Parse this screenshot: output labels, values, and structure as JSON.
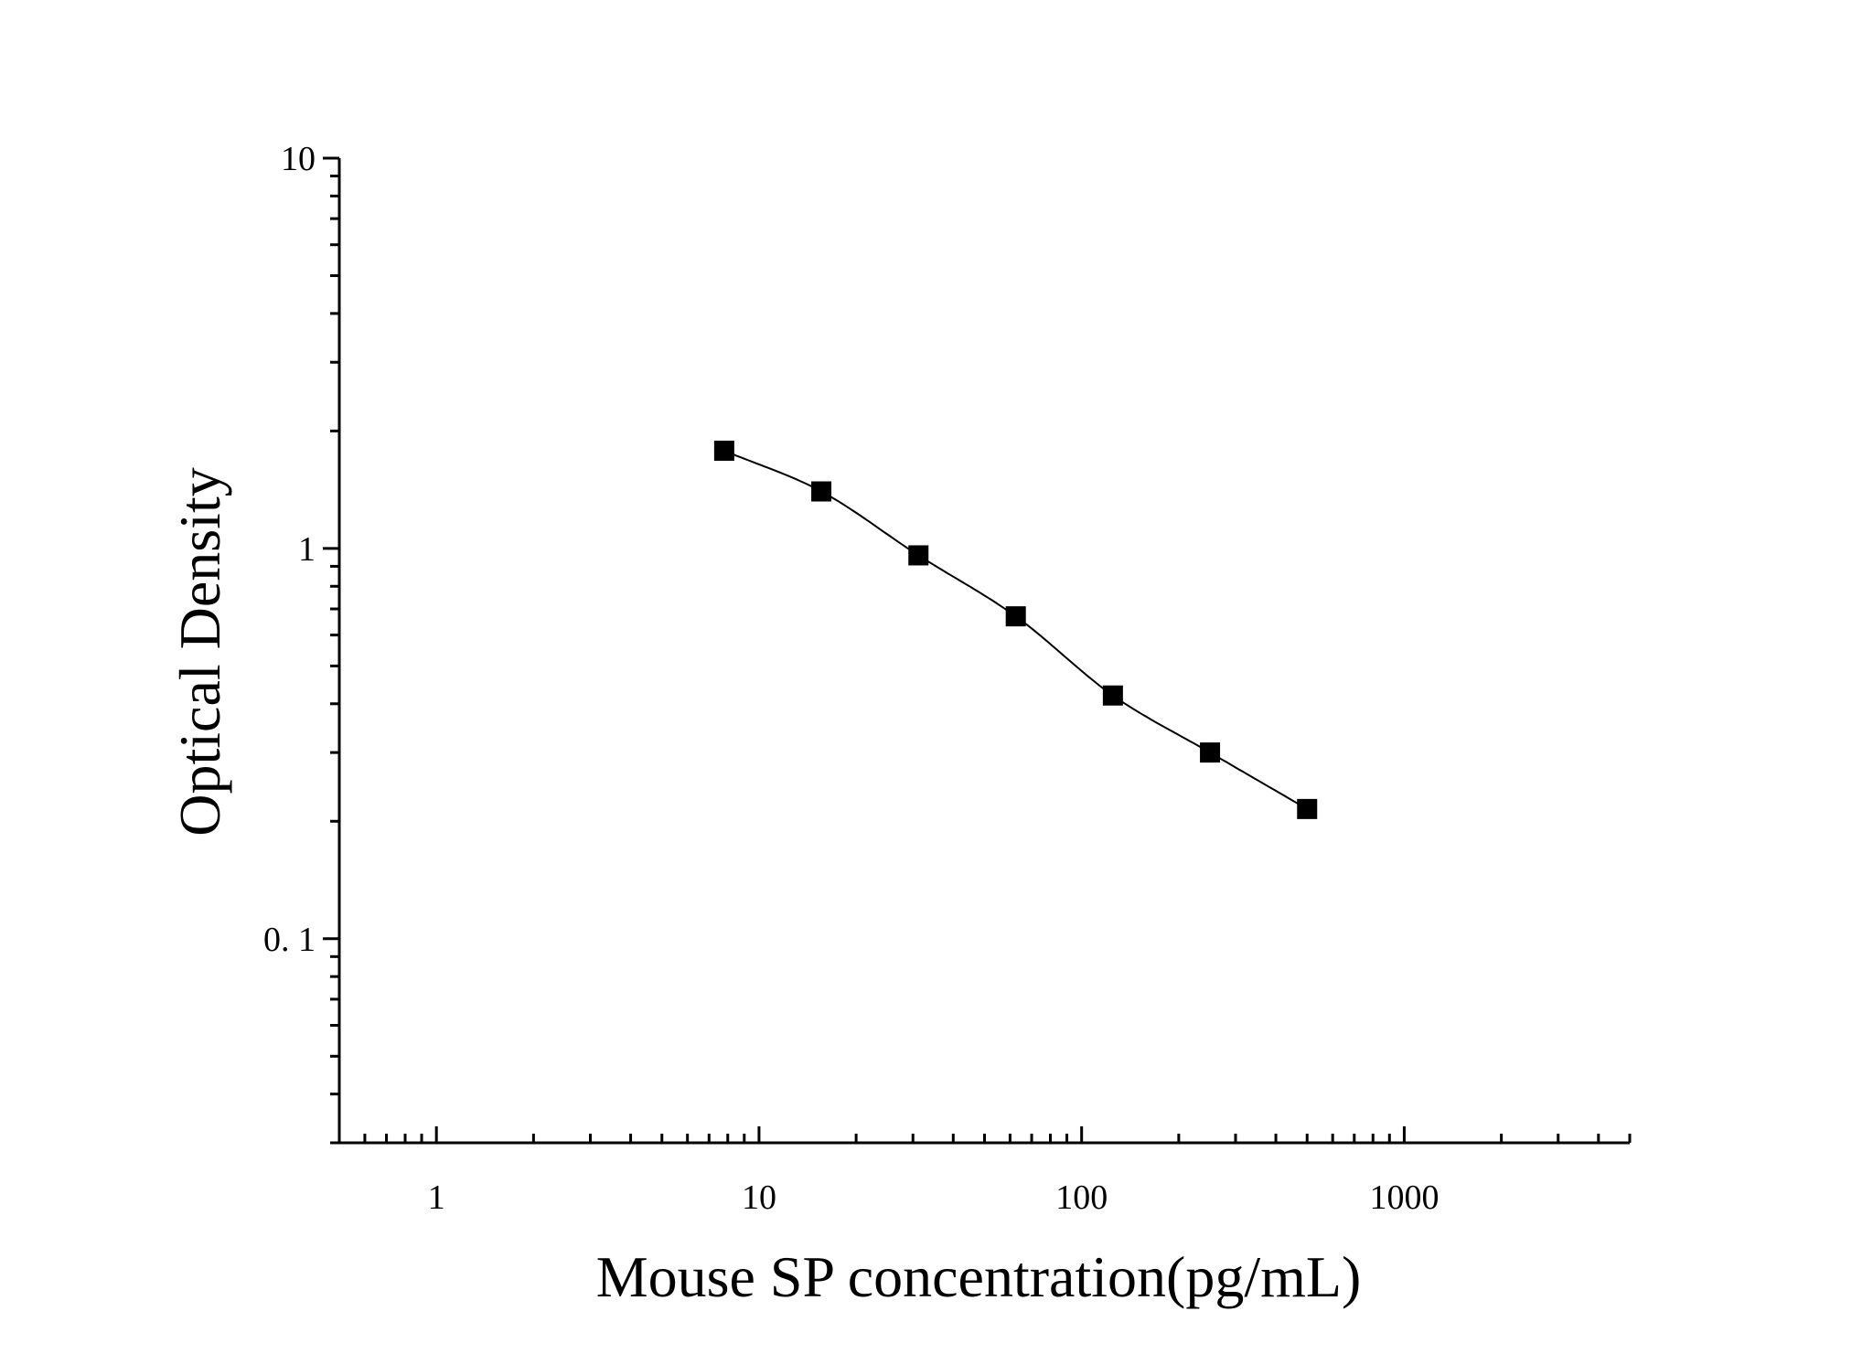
{
  "chart_data": {
    "type": "scatter",
    "title": "",
    "xlabel": "Mouse SP concentration(pg/mL)",
    "ylabel": "Optical Density",
    "x_scale": "log",
    "y_scale": "log",
    "xlim": [
      0.5,
      5000
    ],
    "ylim": [
      0.03,
      10
    ],
    "x_ticks": [
      {
        "value": 1,
        "label": "1"
      },
      {
        "value": 10,
        "label": "10"
      },
      {
        "value": 100,
        "label": "100"
      },
      {
        "value": 1000,
        "label": "1000"
      }
    ],
    "y_ticks": [
      {
        "value": 0.1,
        "label": "0. 1"
      },
      {
        "value": 1,
        "label": "1"
      },
      {
        "value": 10,
        "label": "10"
      }
    ],
    "grid": false,
    "legend": "none",
    "marker_color": "#000000",
    "series": [
      {
        "marker": "square",
        "fit_curve": true,
        "x": [
          7.8,
          15.6,
          31.2,
          62.5,
          125,
          250,
          500
        ],
        "y": [
          1.78,
          1.4,
          0.96,
          0.67,
          0.42,
          0.3,
          0.215
        ]
      }
    ]
  }
}
